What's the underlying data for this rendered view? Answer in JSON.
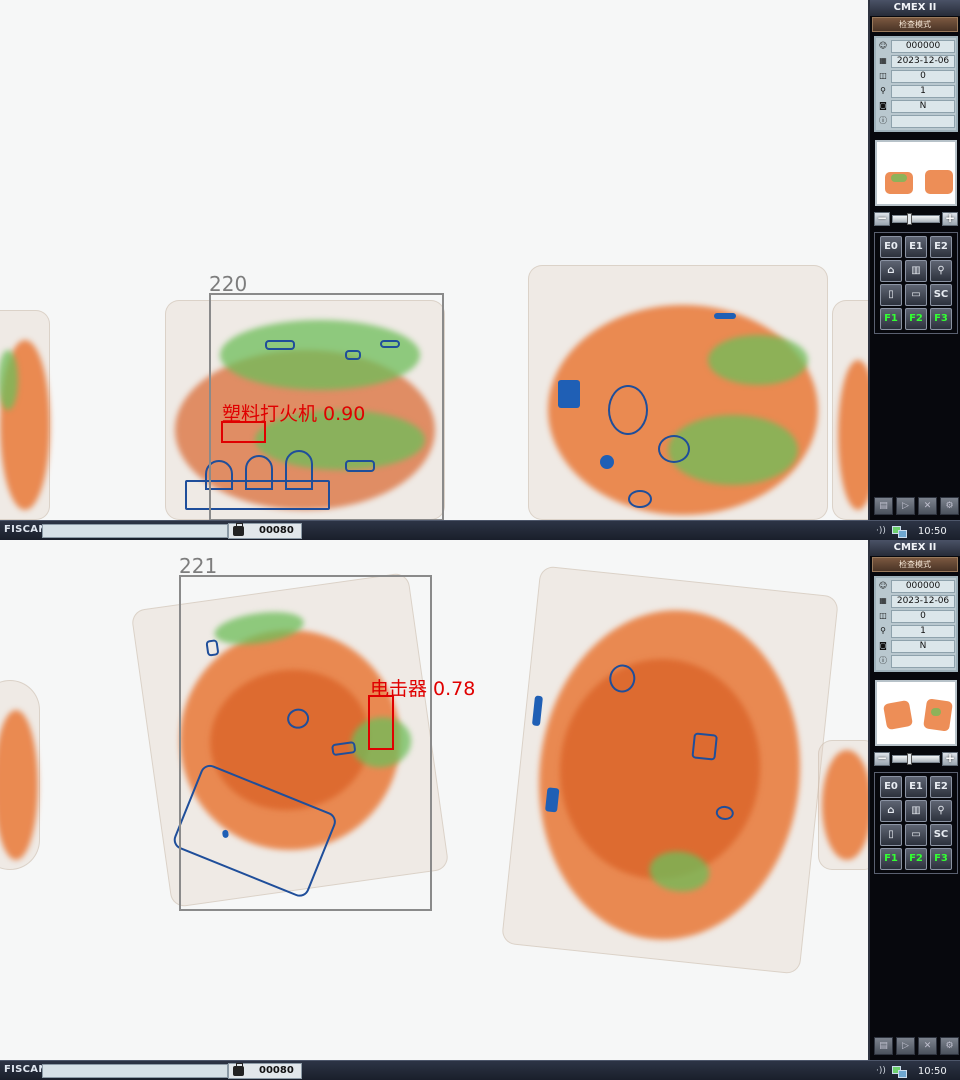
{
  "screens": [
    {
      "detection_id": "220",
      "alert_label": "塑料打火机 0.90",
      "panel": {
        "title": "CMEX II",
        "mode": "检查模式",
        "info_values": [
          "000000",
          "2023-12-06",
          "0",
          "1",
          "N",
          ""
        ],
        "info_icons": [
          "operator-icon",
          "calendar-icon",
          "bag-count-icon",
          "magnifier-icon",
          "camera-icon",
          "info-icon"
        ],
        "buttons": [
          "E0",
          "E1",
          "E2",
          "⌂",
          "▥",
          "⚲",
          "▯",
          "▭",
          "SC",
          "F1",
          "F2",
          "F3"
        ],
        "zoom_minus": "−",
        "zoom_plus": "+"
      },
      "status": {
        "brand": "FISCAN",
        "bag_count": "00080",
        "time": "10:50",
        "sound": "·))"
      }
    },
    {
      "detection_id": "221",
      "alert_label": "电击器 0.78",
      "panel": {
        "title": "CMEX II",
        "mode": "检查模式",
        "info_values": [
          "000000",
          "2023-12-06",
          "0",
          "1",
          "N",
          ""
        ],
        "info_icons": [
          "operator-icon",
          "calendar-icon",
          "bag-count-icon",
          "magnifier-icon",
          "camera-icon",
          "info-icon"
        ],
        "buttons": [
          "E0",
          "E1",
          "E2",
          "⌂",
          "▥",
          "⚲",
          "▯",
          "▭",
          "SC",
          "F1",
          "F2",
          "F3"
        ],
        "zoom_minus": "−",
        "zoom_plus": "+"
      },
      "status": {
        "brand": "FISCAN",
        "bag_count": "00080",
        "time": "10:50",
        "sound": "·))"
      }
    }
  ]
}
